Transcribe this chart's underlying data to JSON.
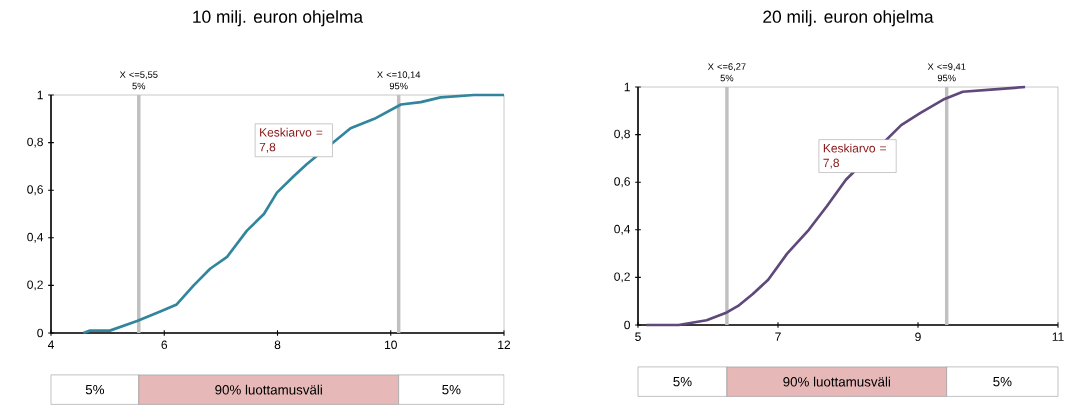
{
  "chart_data": [
    {
      "type": "line",
      "title": "10 milj. euron ohjelma",
      "xlim": [
        4,
        12
      ],
      "xticks": [
        4,
        6,
        8,
        10,
        12
      ],
      "ylim": [
        0,
        1
      ],
      "yticks": [
        0,
        {
          "value": 0.2,
          "label": "0,2"
        },
        {
          "value": 0.4,
          "label": "0,4"
        },
        {
          "value": 0.6,
          "label": "0,6"
        },
        {
          "value": 0.8,
          "label": "0,8"
        },
        1
      ],
      "series": [
        {
          "color": "#31859c",
          "x": [
            4.57,
            4.69,
            5.04,
            5.52,
            5.93,
            6.22,
            6.52,
            6.81,
            7.11,
            7.46,
            7.76,
            7.99,
            8.29,
            8.52,
            8.82,
            9.29,
            9.71,
            10.18,
            10.53,
            10.88,
            11.47,
            12
          ],
          "values": [
            0,
            0.01,
            0.01,
            0.05,
            0.09,
            0.12,
            0.2,
            0.27,
            0.32,
            0.43,
            0.5,
            0.59,
            0.66,
            0.71,
            null,
            0.86,
            0.9,
            0.96,
            0.97,
            0.99,
            1,
            1
          ]
        }
      ],
      "ref_lines": [
        {
          "axis": "x",
          "value": 5.55,
          "label": "X <=5,55 5%",
          "color": "#c0c0c0"
        },
        {
          "axis": "x",
          "value": 10.14,
          "label": "X <=10,14 95%",
          "color": "#c0c0c0"
        }
      ],
      "annotations": [
        "Keskiarvo = 7,8",
        "5%",
        "90% luottamusväli",
        "5%"
      ]
    },
    {
      "type": "line",
      "title": "20 milj. euron ohjelma",
      "xlim": [
        5,
        11
      ],
      "xticks": [
        5,
        7,
        9,
        11
      ],
      "ylim": [
        0,
        1
      ],
      "yticks": [
        0,
        {
          "value": 0.2,
          "label": "0,2"
        },
        {
          "value": 0.4,
          "label": "0,4"
        },
        {
          "value": 0.6,
          "label": "0,6"
        },
        {
          "value": 0.8,
          "label": "0,8"
        },
        1
      ],
      "series": [
        {
          "color": "#5f497a",
          "x": [
            5.12,
            5.58,
            5.98,
            6.25,
            6.43,
            6.64,
            6.86,
            7.13,
            7.44,
            7.7,
            7.97,
            8.23,
            8.45,
            8.76,
            9.03,
            9.38,
            9.64,
            10.09,
            10.53
          ],
          "values": [
            0,
            0,
            0.02,
            0.05,
            0.08,
            0.13,
            0.19,
            0.3,
            0.4,
            0.5,
            0.61,
            null,
            null,
            0.84,
            0.89,
            0.95,
            0.98,
            0.99,
            1
          ]
        }
      ],
      "ref_lines": [
        {
          "axis": "x",
          "value": 6.27,
          "label": "X <=6,27 5%",
          "color": "#c0c0c0"
        },
        {
          "axis": "x",
          "value": 9.41,
          "label": "X <=9,41 95%",
          "color": "#c0c0c0"
        }
      ],
      "annotations": [
        "Keskiarvo = 7,8",
        "5%",
        "90% luottamusväli",
        "5%"
      ]
    }
  ]
}
